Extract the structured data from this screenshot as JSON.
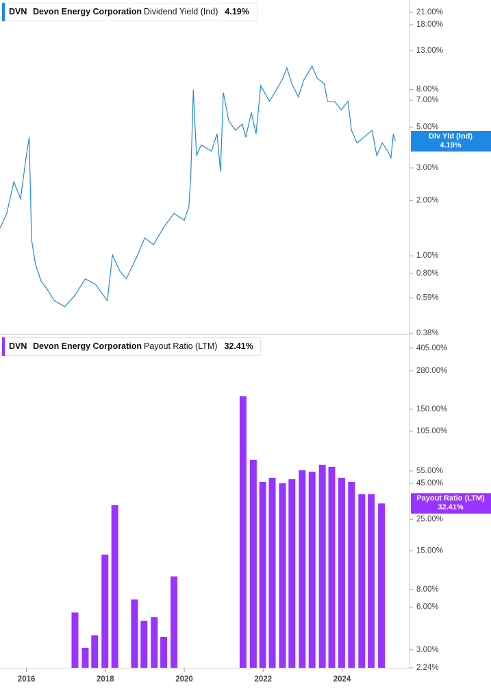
{
  "chart_data": [
    {
      "type": "line",
      "log_scale": true,
      "color": "#1e88e5",
      "header": {
        "ticker": "DVN",
        "company": "Devon Energy Corporation",
        "metric": "Dividend Yield (Ind)",
        "value": "4.19%"
      },
      "tag": {
        "label": "Div Yld (Ind)",
        "value": "4.19%"
      },
      "xlim": [
        2015.33,
        2025.71
      ],
      "ylim": [
        0.38,
        24.5
      ],
      "yticks": [
        {
          "value": 21,
          "label": "21.00%"
        },
        {
          "value": 18,
          "label": "18.00%"
        },
        {
          "value": 13,
          "label": "13.00%"
        },
        {
          "value": 8,
          "label": "8.00%"
        },
        {
          "value": 7,
          "label": "7.00%"
        },
        {
          "value": 5,
          "label": "5.00%"
        },
        {
          "value": 3,
          "label": "3.00%"
        },
        {
          "value": 2,
          "label": "2.00%"
        },
        {
          "value": 1,
          "label": "1.00%"
        },
        {
          "value": 0.8,
          "label": "0.80%"
        },
        {
          "value": 0.59,
          "label": "0.59%"
        },
        {
          "value": 0.38,
          "label": "0.38%"
        }
      ],
      "x": [
        2015.33,
        2015.5,
        2015.68,
        2015.85,
        2015.99,
        2016.07,
        2016.13,
        2016.23,
        2016.37,
        2016.54,
        2016.71,
        2016.97,
        2017.23,
        2017.49,
        2017.75,
        2018.05,
        2018.18,
        2018.36,
        2018.53,
        2018.79,
        2019.0,
        2019.22,
        2019.48,
        2019.74,
        2020.0,
        2020.12,
        2020.17,
        2020.23,
        2020.31,
        2020.43,
        2020.69,
        2020.83,
        2020.92,
        2020.99,
        2021.13,
        2021.3,
        2021.47,
        2021.56,
        2021.7,
        2021.82,
        2021.94,
        2022.16,
        2022.34,
        2022.51,
        2022.6,
        2022.73,
        2022.89,
        2023.03,
        2023.24,
        2023.37,
        2023.55,
        2023.63,
        2023.81,
        2023.98,
        2024.15,
        2024.24,
        2024.38,
        2024.55,
        2024.76,
        2024.88,
        2025.02,
        2025.16,
        2025.24,
        2025.3,
        2025.35
      ],
      "values": [
        1.41,
        1.7,
        2.52,
        2.04,
        3.41,
        4.4,
        1.22,
        0.9,
        0.73,
        0.65,
        0.57,
        0.53,
        0.61,
        0.75,
        0.7,
        0.57,
        1.01,
        0.83,
        0.75,
        0.98,
        1.25,
        1.15,
        1.43,
        1.7,
        1.56,
        1.86,
        2.87,
        8.0,
        3.5,
        4.0,
        3.7,
        4.6,
        2.87,
        7.7,
        5.4,
        4.8,
        5.2,
        4.4,
        6.0,
        4.6,
        8.4,
        6.9,
        8.0,
        9.3,
        10.5,
        8.6,
        7.3,
        9.0,
        10.7,
        9.2,
        8.6,
        6.9,
        6.9,
        6.2,
        6.9,
        4.8,
        4.1,
        4.4,
        4.8,
        3.5,
        4.1,
        3.7,
        3.4,
        4.6,
        4.19
      ]
    },
    {
      "type": "bar",
      "log_scale": true,
      "color": "#9933ff",
      "header": {
        "ticker": "DVN",
        "company": "Devon Energy Corporation",
        "metric": "Payout Ratio (LTM)",
        "value": "32.41%"
      },
      "tag": {
        "label": "Payout Ratio (LTM)",
        "value": "32.41%"
      },
      "xlim": [
        2015.33,
        2025.71
      ],
      "xticks": [
        2016,
        2018,
        2020,
        2022,
        2024
      ],
      "ylim": [
        2.24,
        494
      ],
      "yticks": [
        {
          "value": 405,
          "label": "405.00%"
        },
        {
          "value": 280,
          "label": "280.00%"
        },
        {
          "value": 150,
          "label": "150.00%"
        },
        {
          "value": 105,
          "label": "105.00%"
        },
        {
          "value": 55,
          "label": "55.00%"
        },
        {
          "value": 45,
          "label": "45.00%"
        },
        {
          "value": 25,
          "label": "25.00%"
        },
        {
          "value": 15,
          "label": "15.00%"
        },
        {
          "value": 8,
          "label": "8.00%"
        },
        {
          "value": 6,
          "label": "6.00%"
        },
        {
          "value": 3,
          "label": "3.00%"
        },
        {
          "value": 2.24,
          "label": "2.24%"
        }
      ],
      "x": [
        2017.23,
        2017.49,
        2017.73,
        2017.99,
        2018.24,
        2018.74,
        2018.98,
        2019.24,
        2019.48,
        2019.74,
        2021.49,
        2021.75,
        2021.99,
        2022.23,
        2022.49,
        2022.73,
        2022.99,
        2023.24,
        2023.5,
        2023.74,
        2023.99,
        2024.24,
        2024.5,
        2024.74,
        2025.0
      ],
      "values": [
        5.5,
        3.1,
        3.8,
        14.1,
        31.5,
        6.8,
        4.8,
        5.1,
        3.7,
        9.9,
        185,
        65.8,
        46.0,
        49.2,
        45,
        48.1,
        55.6,
        54.3,
        60.8,
        58.8,
        49.2,
        46,
        37.7,
        37.7,
        32.41
      ]
    }
  ]
}
